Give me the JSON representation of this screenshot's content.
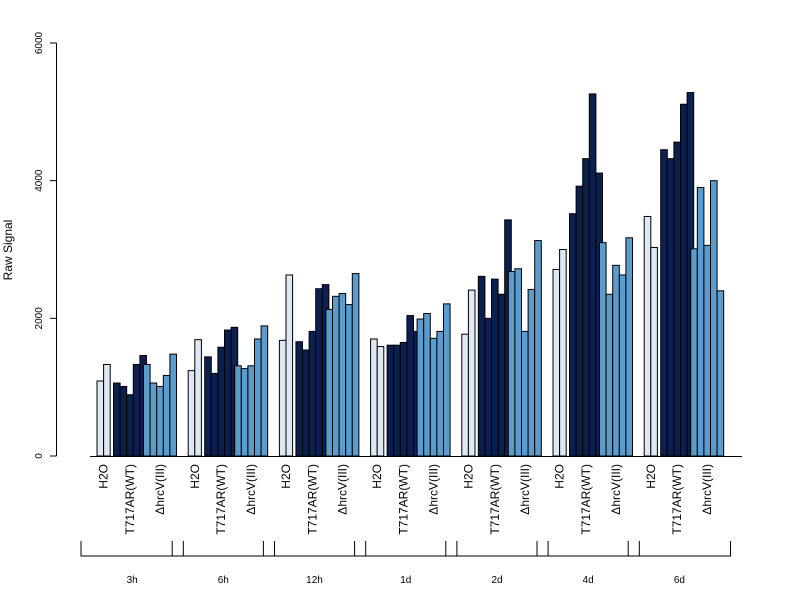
{
  "chart_data": {
    "type": "bar",
    "ylabel": "Raw Signal",
    "ylim": [
      0,
      6000
    ],
    "yticks": [
      0,
      2000,
      4000,
      6000
    ],
    "grid": false,
    "series_labels": [
      "H2O",
      "T717AR(WT)",
      "ΔhrcV(III)"
    ],
    "series_colors": [
      "#dde8f4",
      "#0c2050",
      "#5b9ccc"
    ],
    "groups": [
      {
        "label": "3h",
        "series": [
          {
            "values": [
              1090,
              1330
            ]
          },
          {
            "values": [
              1060,
              1010,
              890,
              1330,
              1460
            ]
          },
          {
            "values": [
              1330,
              1060,
              1010,
              1170,
              1480
            ]
          }
        ]
      },
      {
        "label": "6h",
        "series": [
          {
            "values": [
              1240,
              1690
            ]
          },
          {
            "values": [
              1440,
              1200,
              1580,
              1830,
              1870
            ]
          },
          {
            "values": [
              1310,
              1270,
              1310,
              1700,
              1890
            ]
          }
        ]
      },
      {
        "label": "12h",
        "series": [
          {
            "values": [
              1680,
              2630
            ]
          },
          {
            "values": [
              1660,
              1540,
              1810,
              2430,
              2490
            ]
          },
          {
            "values": [
              2130,
              2320,
              2360,
              2200,
              2650
            ]
          }
        ]
      },
      {
        "label": "1d",
        "series": [
          {
            "values": [
              1700,
              1590
            ]
          },
          {
            "values": [
              1610,
              1610,
              1650,
              2040,
              1810
            ]
          },
          {
            "values": [
              1990,
              2070,
              1710,
              1810,
              2210
            ]
          }
        ]
      },
      {
        "label": "2d",
        "series": [
          {
            "values": [
              1770,
              2410
            ]
          },
          {
            "values": [
              2610,
              2000,
              2570,
              2350,
              3430
            ]
          },
          {
            "values": [
              2680,
              2720,
              1810,
              2420,
              3130
            ]
          }
        ]
      },
      {
        "label": "4d",
        "series": [
          {
            "values": [
              2710,
              3000
            ]
          },
          {
            "values": [
              3520,
              3920,
              4320,
              5260,
              4110
            ]
          },
          {
            "values": [
              3100,
              2350,
              2770,
              2630,
              3170
            ]
          }
        ]
      },
      {
        "label": "6d",
        "series": [
          {
            "values": [
              3480,
              3030
            ]
          },
          {
            "values": [
              4450,
              4320,
              4560,
              5110,
              5280
            ]
          },
          {
            "values": [
              3010,
              3900,
              3060,
              4000,
              2400
            ]
          }
        ]
      }
    ]
  }
}
